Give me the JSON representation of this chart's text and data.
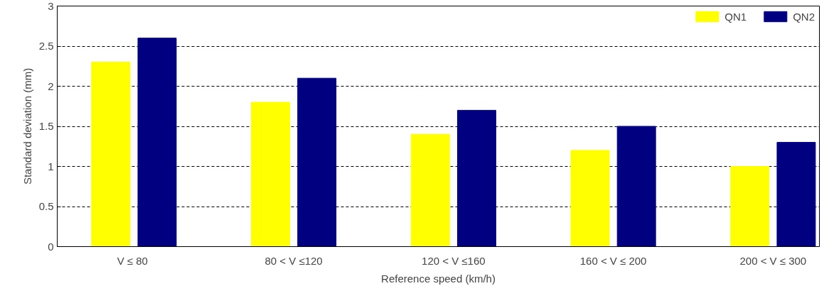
{
  "chart_data": {
    "type": "bar",
    "xlabel": "Reference speed (km/h)",
    "ylabel": "Standard deviation (mm)",
    "categories": [
      "V ≤  80",
      "80 < V ≤120",
      "120 < V ≤160",
      "160 < V ≤ 200",
      "200 < V ≤ 300"
    ],
    "series": [
      {
        "name": "QN1",
        "color": "#ffff00",
        "values": [
          2.3,
          1.8,
          1.4,
          1.2,
          1.0
        ]
      },
      {
        "name": "QN2",
        "color": "#000080",
        "values": [
          2.6,
          2.1,
          1.7,
          1.5,
          1.3
        ]
      }
    ],
    "ylim": [
      0,
      3
    ],
    "yticks": [
      0,
      0.5,
      1,
      1.5,
      2,
      2.5,
      3
    ],
    "grid": "y",
    "legend": "top right"
  }
}
